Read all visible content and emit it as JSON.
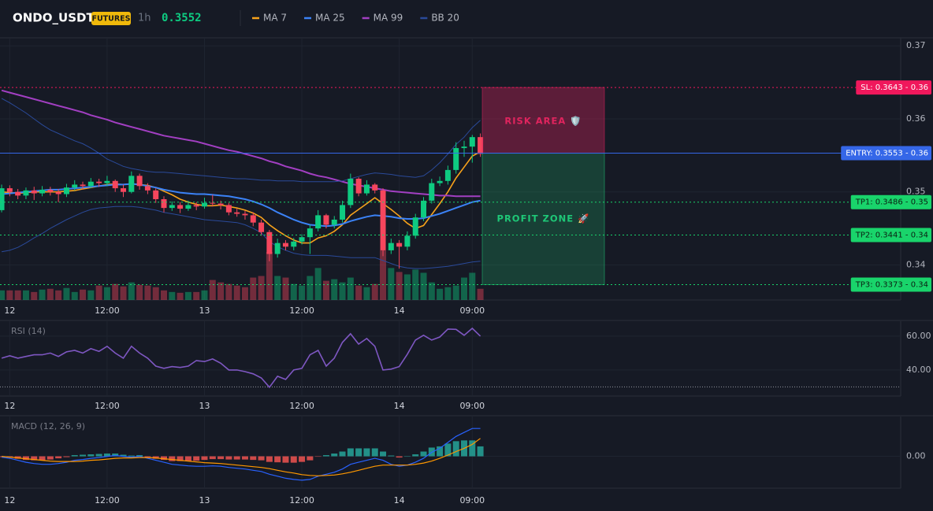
{
  "header": {
    "symbol": "ONDO_USDT",
    "badge": "FUTURES",
    "interval": "1h",
    "price": 0.3552
  },
  "chart_data": [
    {
      "type": "candlestick",
      "up_color": "#0ecb81",
      "down_color": "#f6465d",
      "xlim": [
        -0.2,
        110.8
      ],
      "xticks": [
        {
          "value": 1,
          "label": "12"
        },
        {
          "value": 13,
          "label": "12:00"
        },
        {
          "value": 25,
          "label": "13"
        },
        {
          "value": 37,
          "label": "12:00"
        },
        {
          "value": 49,
          "label": "14"
        },
        {
          "value": 58,
          "label": "09:00"
        }
      ],
      "ylim": [
        0.3352,
        0.3711
      ],
      "yticks": [
        0.37,
        0.36,
        0.35,
        0.34
      ],
      "grid": true,
      "open": [
        0.3475,
        0.3505,
        0.35,
        0.3495,
        0.3502,
        0.3498,
        0.3503,
        0.35,
        0.3497,
        0.3506,
        0.351,
        0.3508,
        0.3514,
        0.3512,
        0.3515,
        0.3505,
        0.35,
        0.3522,
        0.3508,
        0.3502,
        0.349,
        0.3478,
        0.3482,
        0.3477,
        0.3482,
        0.348,
        0.3485,
        0.3484,
        0.3482,
        0.3472,
        0.347,
        0.3468,
        0.3458,
        0.3445,
        0.3415,
        0.343,
        0.3425,
        0.3432,
        0.3438,
        0.345,
        0.3468,
        0.3455,
        0.3462,
        0.3482,
        0.3518,
        0.3498,
        0.351,
        0.3502,
        0.342,
        0.343,
        0.3425,
        0.344,
        0.3465,
        0.3488,
        0.3512,
        0.3515,
        0.353,
        0.356,
        0.3562,
        0.3575
      ],
      "high": [
        0.351,
        0.3509,
        0.3504,
        0.3506,
        0.3507,
        0.3508,
        0.3507,
        0.3504,
        0.3511,
        0.3516,
        0.3514,
        0.3519,
        0.3518,
        0.3522,
        0.3517,
        0.351,
        0.3528,
        0.3525,
        0.3512,
        0.3505,
        0.3494,
        0.3487,
        0.3486,
        0.3488,
        0.3486,
        0.3492,
        0.3496,
        0.3488,
        0.3485,
        0.3477,
        0.3474,
        0.3472,
        0.3462,
        0.3448,
        0.3436,
        0.3434,
        0.3437,
        0.3442,
        0.3455,
        0.3475,
        0.347,
        0.3467,
        0.3488,
        0.3525,
        0.352,
        0.3516,
        0.3512,
        0.3505,
        0.3436,
        0.3434,
        0.3446,
        0.347,
        0.3493,
        0.3518,
        0.3521,
        0.3536,
        0.3568,
        0.357,
        0.3578,
        0.358
      ],
      "low": [
        0.3472,
        0.3494,
        0.349,
        0.349,
        0.3489,
        0.3494,
        0.3495,
        0.3486,
        0.3493,
        0.3502,
        0.3503,
        0.3505,
        0.3507,
        0.3508,
        0.35,
        0.3493,
        0.3498,
        0.3503,
        0.3497,
        0.3485,
        0.3472,
        0.3474,
        0.3471,
        0.3474,
        0.3475,
        0.3477,
        0.348,
        0.3476,
        0.3468,
        0.3466,
        0.3462,
        0.3453,
        0.344,
        0.3405,
        0.341,
        0.342,
        0.342,
        0.3428,
        0.3415,
        0.3446,
        0.345,
        0.345,
        0.3458,
        0.3478,
        0.3494,
        0.3495,
        0.3498,
        0.3412,
        0.3415,
        0.3395,
        0.342,
        0.3436,
        0.346,
        0.3484,
        0.3508,
        0.351,
        0.3525,
        0.3548,
        0.354,
        0.3548
      ],
      "close": [
        0.3505,
        0.35,
        0.3495,
        0.3502,
        0.3498,
        0.3503,
        0.35,
        0.3497,
        0.3506,
        0.351,
        0.3508,
        0.3514,
        0.3512,
        0.3515,
        0.3505,
        0.35,
        0.3522,
        0.3508,
        0.3502,
        0.349,
        0.3478,
        0.3482,
        0.3477,
        0.3482,
        0.348,
        0.3485,
        0.3484,
        0.3482,
        0.3472,
        0.347,
        0.3468,
        0.3458,
        0.3445,
        0.3415,
        0.343,
        0.3425,
        0.3432,
        0.3438,
        0.345,
        0.3468,
        0.3455,
        0.3462,
        0.3482,
        0.3518,
        0.3498,
        0.351,
        0.3502,
        0.342,
        0.343,
        0.3425,
        0.344,
        0.3465,
        0.3488,
        0.3512,
        0.3515,
        0.353,
        0.356,
        0.3562,
        0.3575,
        0.3552
      ],
      "volume": [
        12,
        12,
        12,
        12,
        10,
        13,
        14,
        12,
        15,
        10,
        13,
        12,
        18,
        16,
        20,
        17,
        22,
        19,
        18,
        16,
        12,
        10,
        9,
        10,
        10,
        12,
        25,
        22,
        20,
        18,
        16,
        28,
        30,
        60,
        30,
        28,
        20,
        18,
        30,
        40,
        24,
        26,
        22,
        28,
        18,
        16,
        20,
        62,
        40,
        35,
        32,
        38,
        34,
        22,
        14,
        16,
        18,
        28,
        34,
        14
      ],
      "series": [
        {
          "name": "MA 7",
          "color": "#f7a21b",
          "width": 1.6,
          "values": [
            0.35,
            0.3499,
            0.3498,
            0.3499,
            0.35,
            0.35,
            0.35,
            0.35,
            0.3501,
            0.3502,
            0.3504,
            0.3506,
            0.3508,
            0.351,
            0.3511,
            0.351,
            0.3511,
            0.351,
            0.3509,
            0.3506,
            0.3501,
            0.3496,
            0.349,
            0.3486,
            0.3483,
            0.3481,
            0.3481,
            0.3482,
            0.348,
            0.3478,
            0.3475,
            0.3471,
            0.3465,
            0.3455,
            0.3447,
            0.344,
            0.3434,
            0.343,
            0.343,
            0.3437,
            0.344,
            0.3446,
            0.3455,
            0.3468,
            0.3476,
            0.3484,
            0.3492,
            0.3484,
            0.3476,
            0.3467,
            0.3457,
            0.345,
            0.3454,
            0.3469,
            0.3484,
            0.35,
            0.3519,
            0.3534,
            0.3549,
            0.3555
          ]
        },
        {
          "name": "MA 25",
          "color": "#3b82f6",
          "width": 2,
          "values": [
            0.3497,
            0.3498,
            0.3499,
            0.35,
            0.3501,
            0.3502,
            0.3503,
            0.3503,
            0.3504,
            0.3505,
            0.3506,
            0.3507,
            0.3508,
            0.3509,
            0.351,
            0.351,
            0.3511,
            0.351,
            0.3508,
            0.3506,
            0.3503,
            0.3501,
            0.3499,
            0.3498,
            0.3497,
            0.3497,
            0.3496,
            0.3495,
            0.3494,
            0.3492,
            0.349,
            0.3487,
            0.3483,
            0.3478,
            0.3472,
            0.3467,
            0.3462,
            0.3458,
            0.3455,
            0.3454,
            0.3453,
            0.3454,
            0.3456,
            0.346,
            0.3463,
            0.3466,
            0.3468,
            0.3467,
            0.3466,
            0.3464,
            0.3463,
            0.3463,
            0.3464,
            0.3467,
            0.347,
            0.3474,
            0.3478,
            0.3482,
            0.3486,
            0.3488
          ]
        },
        {
          "name": "MA 99",
          "color": "#a23fc2",
          "width": 2,
          "values": [
            0.3639,
            0.3636,
            0.3633,
            0.363,
            0.3627,
            0.3624,
            0.3621,
            0.3618,
            0.3615,
            0.3612,
            0.3609,
            0.3605,
            0.3602,
            0.3599,
            0.3595,
            0.3592,
            0.3589,
            0.3586,
            0.3583,
            0.358,
            0.3577,
            0.3575,
            0.3573,
            0.3571,
            0.3569,
            0.3566,
            0.3563,
            0.356,
            0.3557,
            0.3555,
            0.3552,
            0.3549,
            0.3546,
            0.3542,
            0.3539,
            0.3535,
            0.3532,
            0.3529,
            0.3525,
            0.3522,
            0.352,
            0.3517,
            0.3514,
            0.3511,
            0.3509,
            0.3507,
            0.3505,
            0.3503,
            0.3501,
            0.35,
            0.3499,
            0.3498,
            0.3497,
            0.3496,
            0.3495,
            0.3495,
            0.3494,
            0.3494,
            0.3494,
            0.3494
          ]
        },
        {
          "name": "BB 20",
          "color": "#2a4a9a",
          "width": 1,
          "values": [
            0.3628,
            0.3622,
            0.3615,
            0.3608,
            0.36,
            0.3592,
            0.3585,
            0.358,
            0.3575,
            0.357,
            0.3566,
            0.356,
            0.3553,
            0.3545,
            0.354,
            0.3535,
            0.3532,
            0.353,
            0.3528,
            0.3527,
            0.3527,
            0.3526,
            0.3525,
            0.3524,
            0.3523,
            0.3522,
            0.3521,
            0.352,
            0.3519,
            0.3518,
            0.3518,
            0.3517,
            0.3516,
            0.3516,
            0.3515,
            0.3515,
            0.3515,
            0.3514,
            0.3514,
            0.3514,
            0.3514,
            0.3514,
            0.3515,
            0.3518,
            0.3521,
            0.3524,
            0.3526,
            0.3525,
            0.3524,
            0.3522,
            0.3521,
            0.352,
            0.3522,
            0.353,
            0.354,
            0.3552,
            0.3565,
            0.3575,
            0.3588,
            0.3598
          ],
          "lower": [
            0.3418,
            0.342,
            0.3424,
            0.343,
            0.3437,
            0.3443,
            0.345,
            0.3456,
            0.3462,
            0.3467,
            0.3472,
            0.3476,
            0.3478,
            0.3479,
            0.348,
            0.348,
            0.348,
            0.3479,
            0.3477,
            0.3475,
            0.3472,
            0.347,
            0.3468,
            0.3466,
            0.3464,
            0.3462,
            0.3461,
            0.346,
            0.3459,
            0.3458,
            0.3455,
            0.345,
            0.3444,
            0.3432,
            0.3425,
            0.342,
            0.3416,
            0.3414,
            0.3413,
            0.3413,
            0.3413,
            0.3412,
            0.3411,
            0.341,
            0.341,
            0.341,
            0.341,
            0.3406,
            0.3402,
            0.3398,
            0.3396,
            0.3395,
            0.3395,
            0.3396,
            0.3397,
            0.3398,
            0.34,
            0.3402,
            0.3404,
            0.3405
          ]
        }
      ],
      "levels": [
        {
          "label": "SL: 0.3643 - 0.36",
          "value": 0.3643,
          "color": "#f0185c",
          "style": "dotted"
        },
        {
          "label": "ENTRY: 0.3553 - 0.36",
          "value": 0.3553,
          "color": "#3567e8",
          "style": "solid"
        },
        {
          "label": "TP1: 0.3486 - 0.35",
          "value": 0.3486,
          "color": "#19d46b",
          "style": "dotted"
        },
        {
          "label": "TP2: 0.3441 - 0.34",
          "value": 0.3441,
          "color": "#19d46b",
          "style": "dotted"
        },
        {
          "label": "TP3: 0.3373 - 0.34",
          "value": 0.3373,
          "color": "#19d46b",
          "style": "dotted"
        }
      ],
      "zones": [
        {
          "label": "RISK AREA 🛡️",
          "color": "#e0245e"
        },
        {
          "label": "PROFIT ZONE 🚀",
          "color": "#1ec777"
        }
      ]
    },
    {
      "type": "line",
      "title": "RSI (14)",
      "color": "#7e57c2",
      "xlim": [
        -0.2,
        110.8
      ],
      "xticks": [
        {
          "value": 1,
          "label": "12"
        },
        {
          "value": 13,
          "label": "12:00"
        },
        {
          "value": 25,
          "label": "13"
        },
        {
          "value": 37,
          "label": "12:00"
        },
        {
          "value": 49,
          "label": "14"
        },
        {
          "value": 58,
          "label": "09:00"
        }
      ],
      "ylim": [
        24.6,
        68.8
      ],
      "yticks": [
        {
          "value": 60,
          "label": "60.00"
        },
        {
          "value": 40,
          "label": "40.00"
        }
      ],
      "levels": [
        30
      ],
      "values": [
        47,
        48.4,
        47,
        48,
        49,
        49,
        50,
        48,
        50.7,
        51.6,
        50,
        52.6,
        51,
        54,
        50,
        47,
        54,
        50,
        47,
        42.3,
        41,
        42,
        41.5,
        42.3,
        45.6,
        45,
        46.5,
        44,
        40,
        40,
        39,
        37.7,
        35.3,
        29.8,
        36.3,
        34.4,
        40,
        41,
        49,
        51.6,
        42.3,
        47,
        56.3,
        61.4,
        55.3,
        58.6,
        54,
        40,
        40.5,
        42,
        49.3,
        57.7,
        60.5,
        57.7,
        59.5,
        64.2,
        64,
        60.5,
        64.6,
        60
      ]
    },
    {
      "type": "macd",
      "title": "MACD (12, 26, 9)",
      "up_color": "#26a69a",
      "down_color": "#ef5350",
      "xlim": [
        -0.2,
        110.8
      ],
      "xticks": [
        {
          "value": 1,
          "label": "12"
        },
        {
          "value": 13,
          "label": "12:00"
        },
        {
          "value": 25,
          "label": "13"
        },
        {
          "value": 37,
          "label": "12:00"
        },
        {
          "value": 49,
          "label": "14"
        },
        {
          "value": 58,
          "label": "09:00"
        }
      ],
      "ylim": [
        -0.0008,
        0.001
      ],
      "yticks": [
        {
          "value": 0,
          "label": "0.00"
        }
      ],
      "histogram": [
        -2e-05,
        -3e-05,
        -6e-05,
        -9e-05,
        -0.0001,
        -0.0001,
        -8e-05,
        -5e-05,
        -2e-05,
        3e-05,
        4e-05,
        5e-05,
        6e-05,
        7e-05,
        7e-05,
        4e-05,
        2e-05,
        3e-05,
        -2e-05,
        -6e-05,
        -9e-05,
        -0.00012,
        -0.00012,
        -0.00012,
        -0.00011,
        -9e-05,
        -7e-05,
        -7e-05,
        -8e-05,
        -8e-05,
        -8e-05,
        -9e-05,
        -0.0001,
        -0.00014,
        -0.00015,
        -0.00016,
        -0.00016,
        -0.00014,
        -0.0001,
        -1e-05,
        3e-05,
        7e-05,
        0.00012,
        0.0002,
        0.0002,
        0.0002,
        0.0002,
        0.00012,
        2e-05,
        -3e-05,
        0,
        5e-05,
        0.00012,
        0.00022,
        0.00025,
        0.00032,
        0.00038,
        0.0004,
        0.0004,
        0.00025
      ],
      "series": [
        {
          "color": "#2962ff",
          "values": [
            -2e-05,
            -5e-05,
            -0.0001,
            -0.00015,
            -0.00018,
            -0.0002,
            -0.0002,
            -0.00018,
            -0.00015,
            -0.0001,
            -8e-05,
            -5e-05,
            -3e-05,
            0,
            2e-05,
            0,
            -2e-05,
            0,
            -5e-05,
            -0.0001,
            -0.00015,
            -0.0002,
            -0.00022,
            -0.00024,
            -0.00025,
            -0.00025,
            -0.00024,
            -0.00025,
            -0.00028,
            -0.0003,
            -0.00032,
            -0.00035,
            -0.00038,
            -0.00045,
            -0.0005,
            -0.00055,
            -0.00058,
            -0.0006,
            -0.00058,
            -0.0005,
            -0.00045,
            -0.0004,
            -0.00032,
            -0.0002,
            -0.00015,
            -0.0001,
            -5e-05,
            -0.0001,
            -0.0002,
            -0.00025,
            -0.00022,
            -0.00015,
            -5e-05,
            0.0001,
            0.0002,
            0.00035,
            0.0005,
            0.0006,
            0.0007,
            0.0007
          ]
        },
        {
          "color": "#ff9800",
          "values": [
            0,
            -2e-05,
            -4e-05,
            -6e-05,
            -8e-05,
            -0.0001,
            -0.00012,
            -0.00013,
            -0.00013,
            -0.00013,
            -0.00012,
            -0.0001,
            -9e-05,
            -7e-05,
            -5e-05,
            -4e-05,
            -4e-05,
            -3e-05,
            -3e-05,
            -4e-05,
            -6e-05,
            -8e-05,
            -0.0001,
            -0.00012,
            -0.00014,
            -0.00016,
            -0.00017,
            -0.00018,
            -0.0002,
            -0.00022,
            -0.00024,
            -0.00026,
            -0.00028,
            -0.00031,
            -0.00035,
            -0.00039,
            -0.00042,
            -0.00046,
            -0.00048,
            -0.00049,
            -0.00048,
            -0.00047,
            -0.00044,
            -0.0004,
            -0.00035,
            -0.0003,
            -0.00025,
            -0.00022,
            -0.00022,
            -0.00022,
            -0.00022,
            -0.0002,
            -0.00017,
            -0.00012,
            -5e-05,
            3e-05,
            0.00012,
            0.0002,
            0.0003,
            0.00045
          ]
        }
      ]
    }
  ]
}
